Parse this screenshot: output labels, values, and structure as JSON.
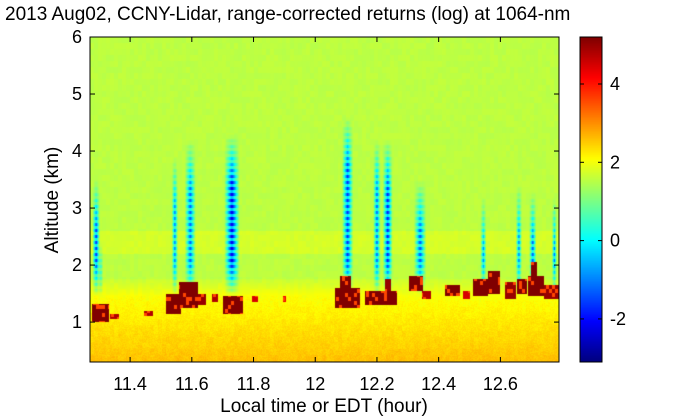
{
  "chart_data": {
    "type": "heatmap",
    "title": "2013 Aug02, CCNY-Lidar, range-corrected returns (log) at 1064-nm",
    "xlabel": "Local time or EDT (hour)",
    "ylabel": "Altitude (km)",
    "xlim": [
      11.27,
      12.79
    ],
    "ylim": [
      0.3,
      6.0
    ],
    "x_ticks": [
      "11.4",
      "11.6",
      "11.8",
      "12",
      "12.2",
      "12.4",
      "12.6"
    ],
    "x_tick_values": [
      11.4,
      11.6,
      11.8,
      12.0,
      12.2,
      12.4,
      12.6
    ],
    "y_ticks": [
      "1",
      "2",
      "3",
      "4",
      "5",
      "6"
    ],
    "y_tick_values": [
      1,
      2,
      3,
      4,
      5,
      6
    ],
    "colorbar": {
      "clim": [
        -3.1,
        5.2
      ],
      "ticks": [
        "-2",
        "0",
        "2",
        "4"
      ],
      "tick_values": [
        -2,
        0,
        2,
        4
      ],
      "colormap": "jet"
    },
    "layers": {
      "background_value": 1.55,
      "near_surface_value": 2.6,
      "aerosol_layer_top_km": 1.45,
      "faint_layer_km": [
        2.2,
        2.6
      ]
    },
    "low_signal_columns": [
      {
        "x": 11.29,
        "width_h": 0.012,
        "top_km": 3.5,
        "min_value": -1.9
      },
      {
        "x": 11.305,
        "width_h": 0.008,
        "top_km": 2.4,
        "min_value": -1.5
      },
      {
        "x": 11.545,
        "width_h": 0.01,
        "top_km": 3.9,
        "min_value": -1.2
      },
      {
        "x": 11.595,
        "width_h": 0.018,
        "top_km": 4.2,
        "min_value": -1.4
      },
      {
        "x": 11.73,
        "width_h": 0.025,
        "top_km": 4.3,
        "min_value": -2.4
      },
      {
        "x": 12.105,
        "width_h": 0.018,
        "top_km": 4.6,
        "min_value": -1.8
      },
      {
        "x": 12.2,
        "width_h": 0.012,
        "top_km": 4.2,
        "min_value": -1.4
      },
      {
        "x": 12.235,
        "width_h": 0.016,
        "top_km": 4.2,
        "min_value": -2.0
      },
      {
        "x": 12.34,
        "width_h": 0.02,
        "top_km": 3.5,
        "min_value": -1.5
      },
      {
        "x": 12.545,
        "width_h": 0.01,
        "top_km": 3.2,
        "min_value": -1.0
      },
      {
        "x": 12.66,
        "width_h": 0.01,
        "top_km": 3.4,
        "min_value": -1.2
      },
      {
        "x": 12.705,
        "width_h": 0.012,
        "top_km": 3.3,
        "min_value": -1.5
      },
      {
        "x": 12.775,
        "width_h": 0.008,
        "top_km": 3.2,
        "min_value": -1.3
      }
    ],
    "cloud_patches": [
      {
        "x0": 11.275,
        "x1": 11.33,
        "y0": 1.0,
        "y1": 1.32,
        "value": 5.2
      },
      {
        "x0": 11.335,
        "x1": 11.365,
        "y0": 1.05,
        "y1": 1.15,
        "value": 4.8
      },
      {
        "x0": 11.445,
        "x1": 11.475,
        "y0": 1.1,
        "y1": 1.2,
        "value": 4.8
      },
      {
        "x0": 11.515,
        "x1": 11.565,
        "y0": 1.15,
        "y1": 1.5,
        "value": 5.2
      },
      {
        "x0": 11.56,
        "x1": 11.62,
        "y0": 1.25,
        "y1": 1.7,
        "value": 5.2
      },
      {
        "x0": 11.62,
        "x1": 11.645,
        "y0": 1.3,
        "y1": 1.5,
        "value": 5.0
      },
      {
        "x0": 11.665,
        "x1": 11.685,
        "y0": 1.35,
        "y1": 1.5,
        "value": 4.8
      },
      {
        "x0": 11.7,
        "x1": 11.765,
        "y0": 1.15,
        "y1": 1.45,
        "value": 5.2
      },
      {
        "x0": 11.795,
        "x1": 11.815,
        "y0": 1.35,
        "y1": 1.45,
        "value": 4.5
      },
      {
        "x0": 11.895,
        "x1": 11.905,
        "y0": 1.35,
        "y1": 1.45,
        "value": 4.3
      },
      {
        "x0": 12.065,
        "x1": 12.145,
        "y0": 1.25,
        "y1": 1.6,
        "value": 5.2
      },
      {
        "x0": 12.08,
        "x1": 12.115,
        "y0": 1.6,
        "y1": 1.8,
        "value": 5.2
      },
      {
        "x0": 12.16,
        "x1": 12.265,
        "y0": 1.3,
        "y1": 1.55,
        "value": 5.2
      },
      {
        "x0": 12.225,
        "x1": 12.245,
        "y0": 1.55,
        "y1": 1.75,
        "value": 5.0
      },
      {
        "x0": 12.305,
        "x1": 12.35,
        "y0": 1.55,
        "y1": 1.8,
        "value": 5.2
      },
      {
        "x0": 12.345,
        "x1": 12.375,
        "y0": 1.4,
        "y1": 1.55,
        "value": 4.8
      },
      {
        "x0": 12.42,
        "x1": 12.47,
        "y0": 1.45,
        "y1": 1.65,
        "value": 5.2
      },
      {
        "x0": 12.48,
        "x1": 12.5,
        "y0": 1.4,
        "y1": 1.55,
        "value": 4.5
      },
      {
        "x0": 12.51,
        "x1": 12.56,
        "y0": 1.45,
        "y1": 1.75,
        "value": 5.2
      },
      {
        "x0": 12.56,
        "x1": 12.6,
        "y0": 1.5,
        "y1": 1.9,
        "value": 5.2
      },
      {
        "x0": 12.615,
        "x1": 12.65,
        "y0": 1.4,
        "y1": 1.7,
        "value": 5.0
      },
      {
        "x0": 12.655,
        "x1": 12.685,
        "y0": 1.5,
        "y1": 1.75,
        "value": 5.2
      },
      {
        "x0": 12.69,
        "x1": 12.74,
        "y0": 1.45,
        "y1": 1.8,
        "value": 5.2
      },
      {
        "x0": 12.7,
        "x1": 12.72,
        "y0": 1.8,
        "y1": 2.05,
        "value": 5.2
      },
      {
        "x0": 12.74,
        "x1": 12.79,
        "y0": 1.4,
        "y1": 1.65,
        "value": 5.0
      }
    ]
  }
}
